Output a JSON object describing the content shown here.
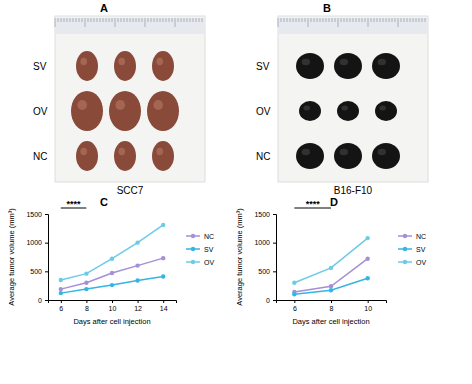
{
  "photo_panels": [
    {
      "label": "A",
      "rows": [
        "SV",
        "OV",
        "NC"
      ],
      "caption": "SCC7"
    },
    {
      "label": "B",
      "rows": [
        "SV",
        "OV",
        "NC"
      ],
      "caption": "B16-F10"
    }
  ],
  "chart_panel_labels": [
    "C",
    "D"
  ],
  "chart_data": [
    {
      "type": "line",
      "x_label": "Days after cell injection",
      "y_label": "Average tumor volume (mm³)",
      "x": [
        6,
        8,
        10,
        12,
        14
      ],
      "xlim": [
        5,
        15
      ],
      "xticks": [
        6,
        8,
        10,
        12,
        14
      ],
      "ylim": [
        0,
        1500
      ],
      "yticks": [
        0,
        500,
        1000,
        1500
      ],
      "grid": false,
      "legend": "right",
      "marker": "circle",
      "series": [
        {
          "name": "NC",
          "color": "#a58fd6",
          "values": [
            190,
            300,
            470,
            600,
            730
          ]
        },
        {
          "name": "SV",
          "color": "#33b5e5",
          "values": [
            120,
            190,
            260,
            340,
            410
          ]
        },
        {
          "name": "OV",
          "color": "#6ccbe6",
          "values": [
            350,
            460,
            720,
            1000,
            1310
          ]
        }
      ],
      "annotations": [
        {
          "text": "****",
          "x_start": 6,
          "x_end": 8
        }
      ]
    },
    {
      "type": "line",
      "x_label": "Days after cell injection",
      "y_label": "Average tumor volume (mm³)",
      "x": [
        6,
        8,
        10
      ],
      "xlim": [
        5,
        11
      ],
      "xticks": [
        6,
        8,
        10
      ],
      "ylim": [
        0,
        1500
      ],
      "yticks": [
        0,
        500,
        1000,
        1500
      ],
      "grid": false,
      "legend": "right",
      "marker": "circle",
      "series": [
        {
          "name": "NC",
          "color": "#a58fd6",
          "values": [
            140,
            240,
            720
          ]
        },
        {
          "name": "SV",
          "color": "#33b5e5",
          "values": [
            100,
            170,
            380
          ]
        },
        {
          "name": "OV",
          "color": "#6ccbe6",
          "values": [
            300,
            560,
            1080
          ]
        }
      ],
      "annotations": [
        {
          "text": "****",
          "x_start": 6,
          "x_end": 8
        }
      ]
    }
  ]
}
